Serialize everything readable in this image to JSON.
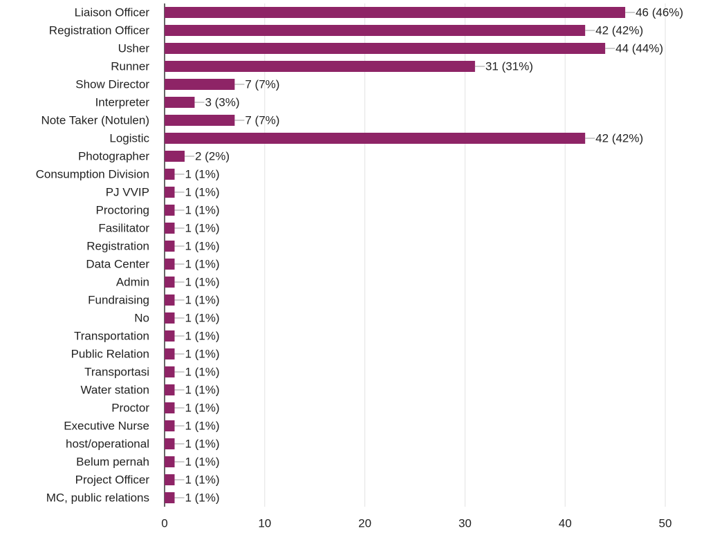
{
  "chart_data": {
    "type": "bar",
    "orientation": "horizontal",
    "categories": [
      "Liaison Officer",
      "Registration Officer",
      "Usher",
      "Runner",
      "Show Director",
      "Interpreter",
      "Note Taker (Notulen)",
      "Logistic",
      "Photographer",
      "Consumption Division",
      "PJ VVIP",
      "Proctoring",
      "Fasilitator",
      "Registration",
      "Data Center",
      "Admin",
      "Fundraising",
      "No",
      "Transportation",
      "Public Relation",
      "Transportasi",
      "Water station",
      "Proctor",
      "Executive Nurse",
      "host/operational",
      "Belum pernah",
      "Project Officer",
      "MC, public relations"
    ],
    "values": [
      46,
      42,
      44,
      31,
      7,
      3,
      7,
      42,
      2,
      1,
      1,
      1,
      1,
      1,
      1,
      1,
      1,
      1,
      1,
      1,
      1,
      1,
      1,
      1,
      1,
      1,
      1,
      1
    ],
    "value_labels": [
      "46 (46%)",
      "42 (42%)",
      "44 (44%)",
      "31 (31%)",
      "7 (7%)",
      "3 (3%)",
      "7 (7%)",
      "42 (42%)",
      "2 (2%)",
      "1 (1%)",
      "1 (1%)",
      "1 (1%)",
      "1 (1%)",
      "1 (1%)",
      "1 (1%)",
      "1 (1%)",
      "1 (1%)",
      "1 (1%)",
      "1 (1%)",
      "1 (1%)",
      "1 (1%)",
      "1 (1%)",
      "1 (1%)",
      "1 (1%)",
      "1 (1%)",
      "1 (1%)",
      "1 (1%)",
      "1 (1%)"
    ],
    "color": "#8e2466",
    "xlim": [
      0,
      50
    ],
    "xticks": [
      0,
      10,
      20,
      30,
      40,
      50
    ],
    "grid": true
  }
}
